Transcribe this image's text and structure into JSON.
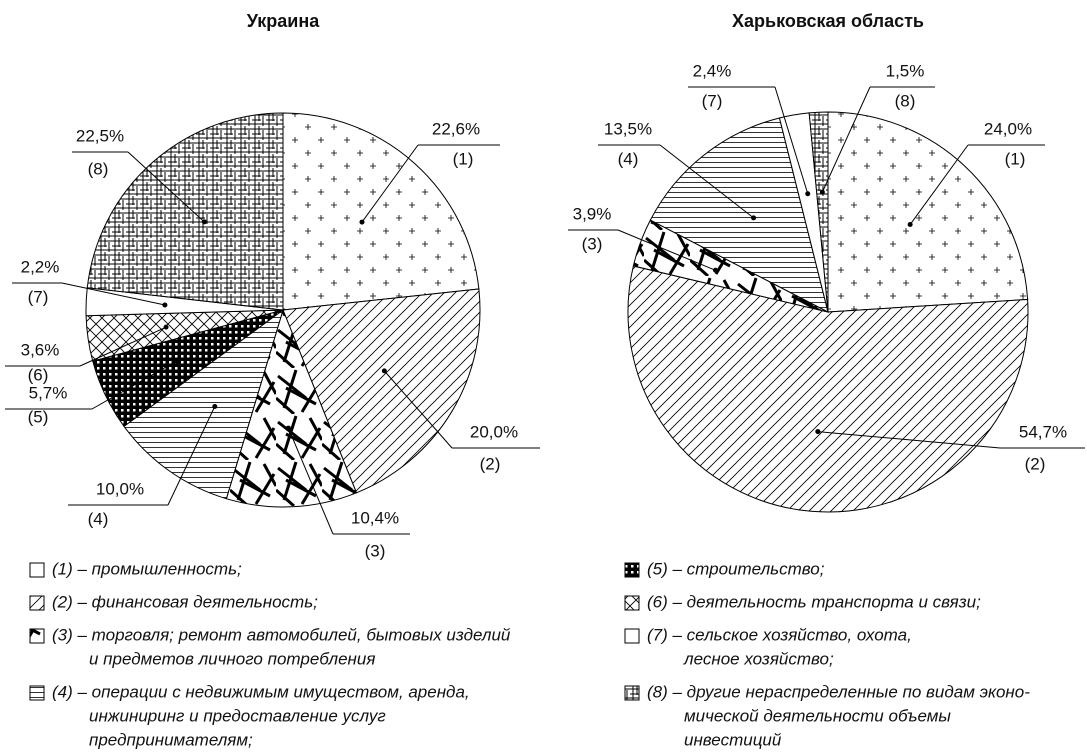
{
  "chart_data": [
    {
      "type": "pie",
      "title": "Украина",
      "categories": [
        "(1)",
        "(2)",
        "(3)",
        "(4)",
        "(5)",
        "(6)",
        "(7)",
        "(8)"
      ],
      "values": [
        22.6,
        20.0,
        10.4,
        10.0,
        5.7,
        3.6,
        2.2,
        22.5
      ],
      "value_labels": [
        "22,6%",
        "20,0%",
        "10,4%",
        "10,0%",
        "5,7%",
        "3,6%",
        "2,2%",
        "22,5%"
      ],
      "patterns": [
        "plus",
        "diagonal",
        "sticks",
        "horizontal",
        "grid",
        "cross",
        "none",
        "hatch"
      ]
    },
    {
      "type": "pie",
      "title": "Харьковская область",
      "categories": [
        "(1)",
        "(2)",
        "(3)",
        "(4)",
        "(7)",
        "(8)"
      ],
      "values": [
        24.0,
        54.7,
        3.9,
        13.5,
        2.4,
        1.5
      ],
      "value_labels": [
        "24,0%",
        "54,7%",
        "3,9%",
        "13,5%",
        "2,4%",
        "1,5%"
      ],
      "patterns": [
        "plus",
        "diagonal",
        "sticks",
        "horizontal",
        "none",
        "hatch"
      ]
    }
  ],
  "legend": [
    {
      "lines": [
        "(1) – промышленность;"
      ]
    },
    {
      "lines": [
        "(2) – финансовая деятельность;"
      ]
    },
    {
      "lines": [
        "(3) – торговля; ремонт автомобилей, бытовых изделий",
        "и предметов личного потребления"
      ]
    },
    {
      "lines": [
        "(4) – операции с недвижимым имуществом, аренда,",
        "инжиниринг и предоставление услуг",
        "предпринимателям;"
      ]
    },
    {
      "lines": [
        "(5) – строительство;"
      ]
    },
    {
      "lines": [
        "(6) – деятельность транспорта и связи;"
      ]
    },
    {
      "lines": [
        "(7) – сельское хозяйство, охота,",
        "лесное хозяйство;"
      ]
    },
    {
      "lines": [
        "(8) – другие нераспределенные по видам эконо-",
        "мической деятельности объемы",
        "инвестиций"
      ]
    }
  ]
}
